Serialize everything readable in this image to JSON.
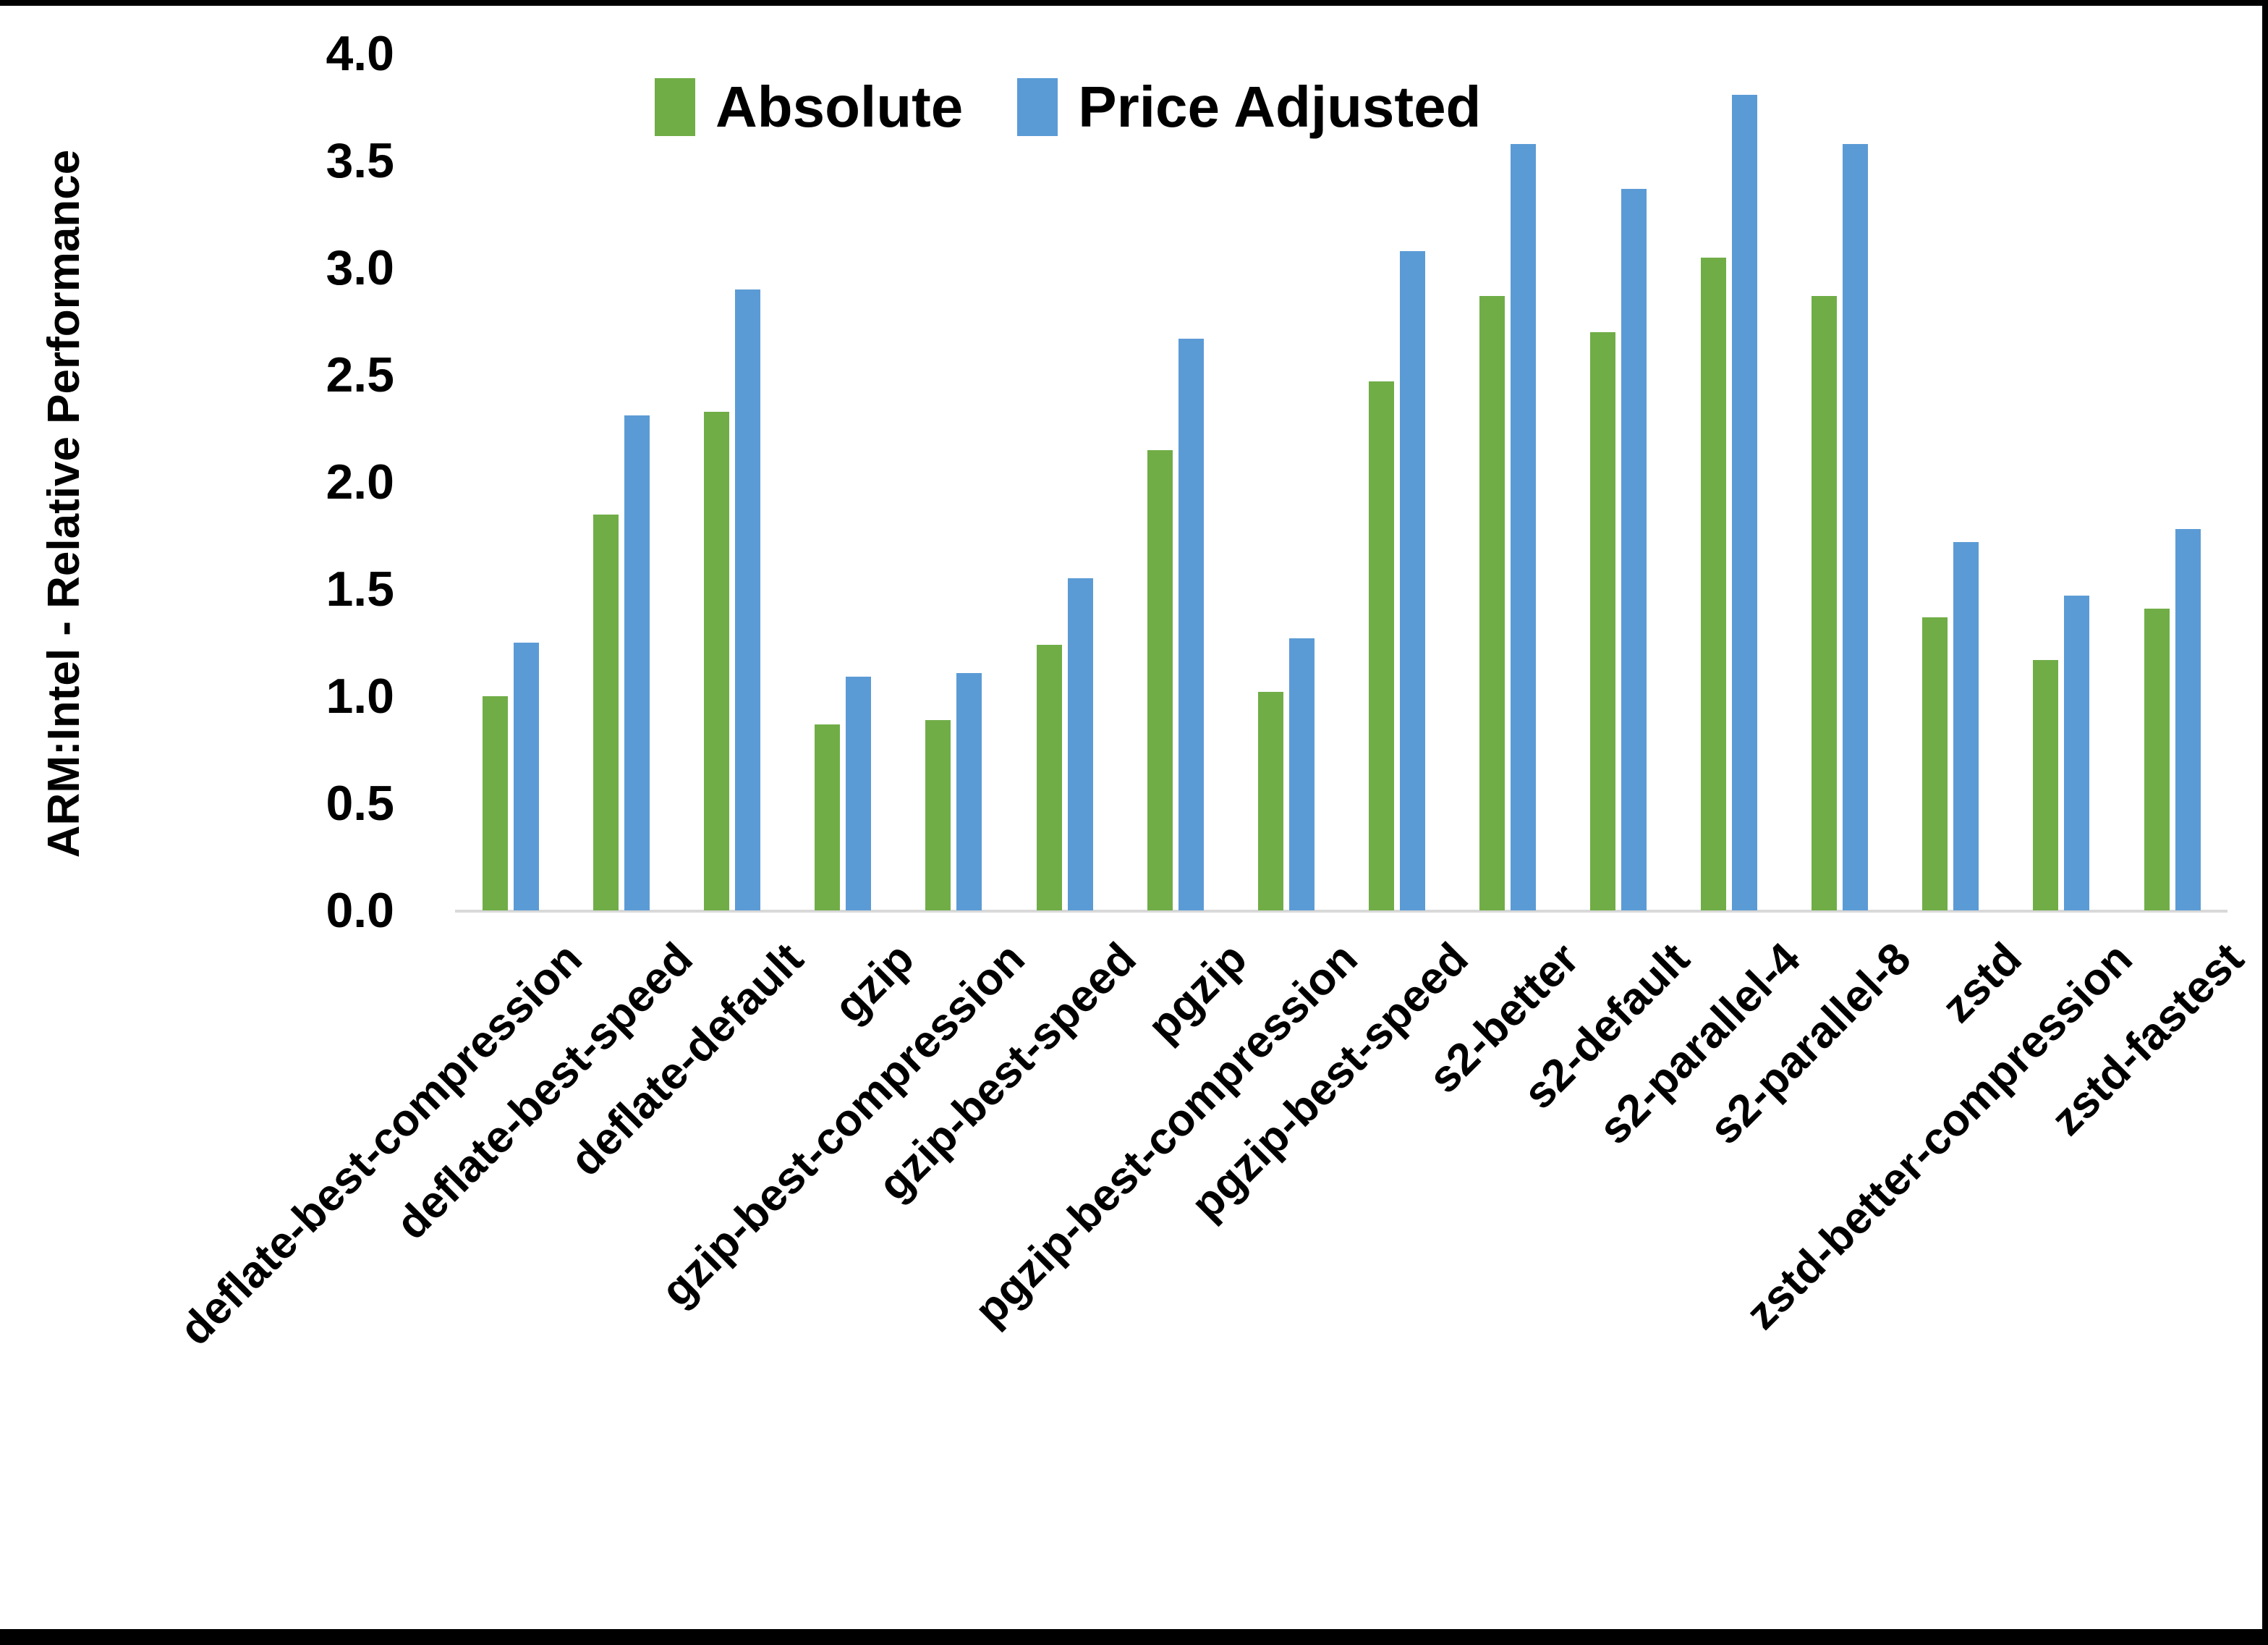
{
  "chart_data": {
    "type": "bar",
    "title": "",
    "ylabel": "ARM:Intel - Relative Performance",
    "xlabel": "",
    "ylim": [
      0,
      4
    ],
    "ytick_step": 0.5,
    "ytick_labels": [
      "0.0",
      "0.5",
      "1.0",
      "1.5",
      "2.0",
      "2.5",
      "3.0",
      "3.5",
      "4.0"
    ],
    "grid": false,
    "legend_position": "top-center",
    "categories": [
      "deflate-best-compression",
      "deflate-best-speed",
      "deflate-default",
      "gzip",
      "gzip-best-compression",
      "gzip-best-speed",
      "pgzip",
      "pgzip-best-compression",
      "pgzip-best-speed",
      "s2-better",
      "s2-default",
      "s2-parallel-4",
      "s2-parallel-8",
      "zstd",
      "zstd-better-compression",
      "zstd-fastest"
    ],
    "series": [
      {
        "name": "Absolute",
        "color": "#70AD47",
        "values": [
          1.0,
          1.85,
          2.33,
          0.87,
          0.89,
          1.24,
          2.15,
          1.02,
          2.47,
          2.87,
          2.7,
          3.05,
          2.87,
          1.37,
          1.17,
          1.41
        ]
      },
      {
        "name": "Price Adjusted",
        "color": "#5B9BD5",
        "values": [
          1.25,
          2.31,
          2.9,
          1.09,
          1.11,
          1.55,
          2.67,
          1.27,
          3.08,
          3.58,
          3.37,
          3.81,
          3.58,
          1.72,
          1.47,
          1.78
        ]
      }
    ],
    "axis_color": "#D9D9D9",
    "text_color": "#000000"
  }
}
